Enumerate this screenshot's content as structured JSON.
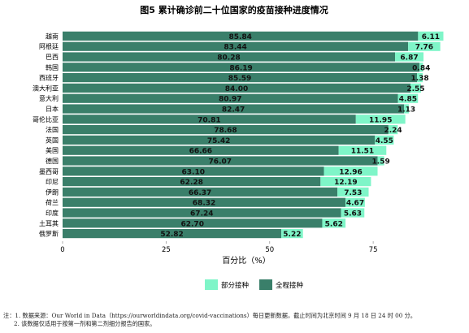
{
  "chart_data": {
    "type": "bar",
    "orientation": "horizontal",
    "stacked": true,
    "title": "图5 累计确诊前二十位国家的疫苗接种进度情况",
    "xlabel": "百分比（%）",
    "ylabel": "",
    "xlim": [
      0,
      100
    ],
    "xticks": [
      0,
      25,
      50,
      75
    ],
    "categories": [
      "越南",
      "阿根廷",
      "巴西",
      "韩国",
      "西班牙",
      "澳大利亚",
      "意大利",
      "日本",
      "哥伦比亚",
      "法国",
      "英国",
      "美国",
      "德国",
      "墨西哥",
      "印尼",
      "伊朗",
      "荷兰",
      "印度",
      "土耳其",
      "俄罗斯"
    ],
    "series": [
      {
        "name": "全程接种",
        "color": "#3a7f6a",
        "values": [
          85.84,
          83.44,
          80.28,
          86.19,
          85.59,
          84.0,
          80.97,
          82.47,
          70.81,
          78.68,
          75.42,
          66.66,
          76.07,
          63.1,
          62.28,
          66.37,
          68.32,
          67.24,
          62.7,
          52.82
        ]
      },
      {
        "name": "部分接种",
        "color": "#7ff5c8",
        "values": [
          6.11,
          7.76,
          6.87,
          0.84,
          1.38,
          2.55,
          4.85,
          1.13,
          11.95,
          2.24,
          4.55,
          11.51,
          1.59,
          12.96,
          12.19,
          7.53,
          4.67,
          5.63,
          5.62,
          5.22
        ]
      }
    ],
    "legend": {
      "position": "bottom",
      "entries": [
        "部分接种",
        "全程接种"
      ]
    },
    "grid": false
  },
  "notes": [
    "注：1. 数据来源：Our World in Data（https://ourworldindata.org/covid-vaccinations）每日更新数据，截止时间为北京时间 9 月 18 日 24 时 00 分。",
    "2. 该数据仅适用于按第一剂和第二剂细分报告的国家。"
  ]
}
